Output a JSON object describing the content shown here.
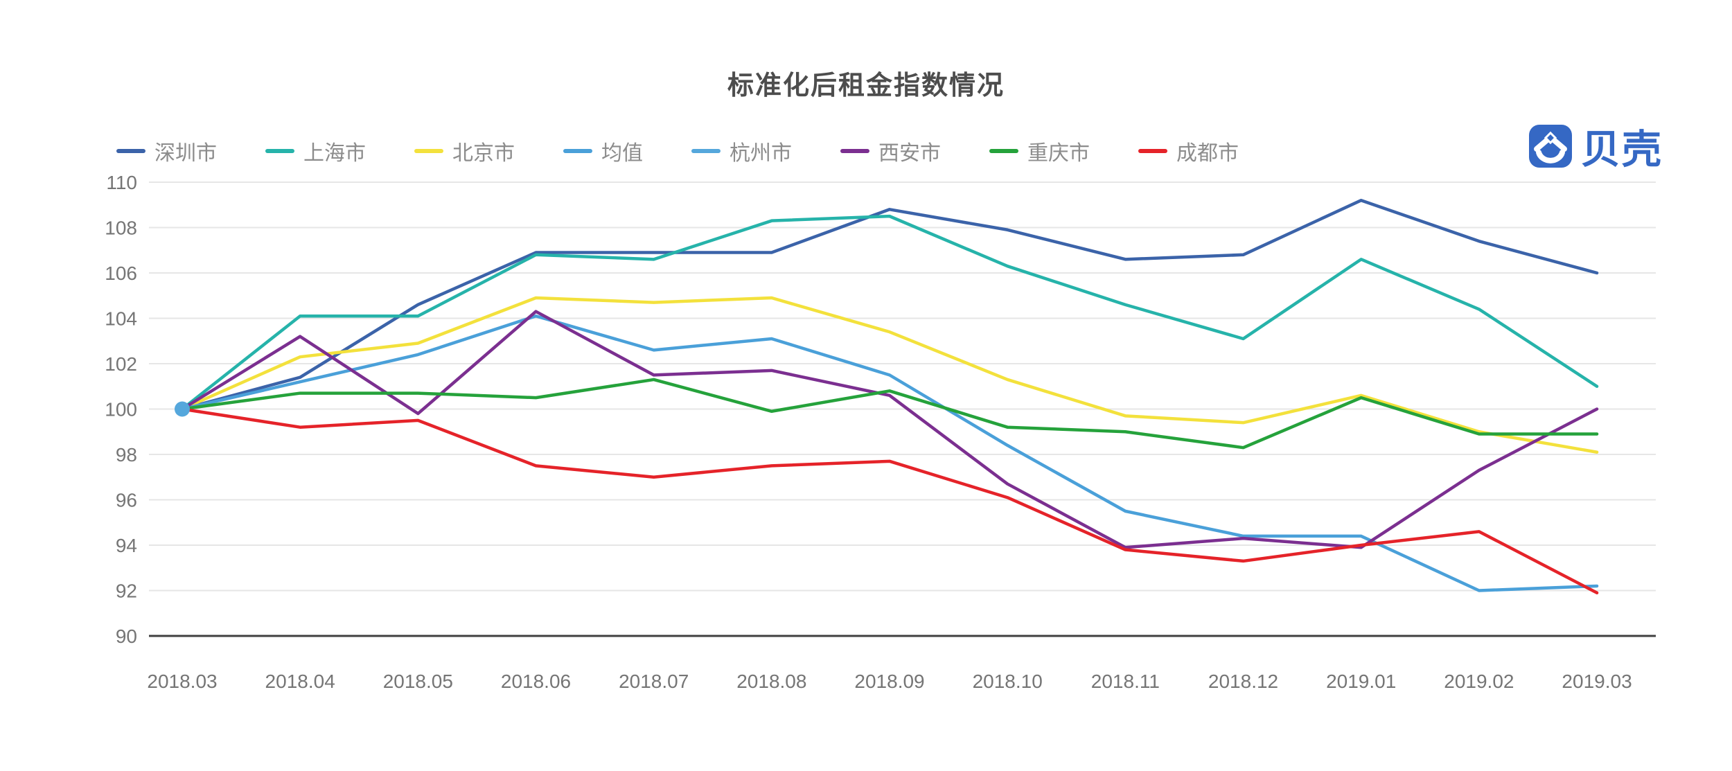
{
  "title": "标准化后租金指数情况",
  "logo": {
    "text": "贝壳",
    "color": "#3568c4",
    "icon": "beike-shell-icon"
  },
  "axes": {
    "y_tick_labels": [
      "110",
      "108",
      "106",
      "104",
      "102",
      "100",
      "98",
      "96",
      "94",
      "92",
      "90"
    ],
    "x_tick_labels": [
      "2018.03",
      "2018.04",
      "2018.05",
      "2018.06",
      "2018.07",
      "2018.08",
      "2018.09",
      "2018.10",
      "2018.11",
      "2018.12",
      "2019.01",
      "2019.02",
      "2019.03"
    ]
  },
  "chart_data": {
    "type": "line",
    "title": "标准化后租金指数情况",
    "categories": [
      "2018.03",
      "2018.04",
      "2018.05",
      "2018.06",
      "2018.07",
      "2018.08",
      "2018.09",
      "2018.10",
      "2018.11",
      "2018.12",
      "2019.01",
      "2019.02",
      "2019.03"
    ],
    "ylim": [
      90,
      110
    ],
    "y_tick_step": 2,
    "grid": true,
    "legend_position": "top",
    "grid_color": "#e6e6e6",
    "axis_line_color": "#3f3f3f",
    "tick_label_color": "#757575",
    "series": [
      {
        "name": "深圳市",
        "color": "#3b63a9",
        "values": [
          100,
          101.4,
          104.6,
          106.9,
          106.9,
          106.9,
          108.8,
          107.9,
          106.6,
          106.8,
          109.2,
          107.4,
          106.0
        ]
      },
      {
        "name": "上海市",
        "color": "#26b3aa",
        "values": [
          100,
          104.1,
          104.1,
          106.8,
          106.6,
          108.3,
          108.5,
          106.3,
          104.6,
          103.1,
          106.6,
          104.4,
          101.0
        ]
      },
      {
        "name": "北京市",
        "color": "#f3e13c",
        "values": [
          100,
          102.3,
          102.9,
          104.9,
          104.7,
          104.9,
          103.4,
          101.3,
          99.7,
          99.4,
          100.6,
          99.0,
          98.1
        ]
      },
      {
        "name": "均值",
        "color": "#4aa0d9",
        "values": [
          100,
          101.2,
          102.4,
          104.1,
          102.6,
          103.1,
          101.5,
          98.4,
          95.5,
          94.4,
          94.4,
          92.0,
          92.2
        ]
      },
      {
        "name": "杭州市",
        "color": "#55a7dc",
        "values": [
          100,
          null,
          null,
          null,
          null,
          null,
          null,
          null,
          null,
          null,
          null,
          null,
          null
        ],
        "single_point_marker": true
      },
      {
        "name": "西安市",
        "color": "#7b2f90",
        "values": [
          100,
          103.2,
          99.8,
          104.3,
          101.5,
          101.7,
          100.6,
          96.7,
          93.9,
          94.3,
          93.9,
          97.3,
          100.0
        ]
      },
      {
        "name": "重庆市",
        "color": "#25a23b",
        "values": [
          100,
          100.7,
          100.7,
          100.5,
          101.3,
          99.9,
          100.8,
          99.2,
          99.0,
          98.3,
          100.5,
          98.9,
          98.9
        ]
      },
      {
        "name": "成都市",
        "color": "#e52329",
        "values": [
          100,
          99.2,
          99.5,
          97.5,
          97.0,
          97.5,
          97.7,
          96.1,
          93.8,
          93.3,
          94.0,
          94.6,
          91.9
        ]
      }
    ]
  }
}
